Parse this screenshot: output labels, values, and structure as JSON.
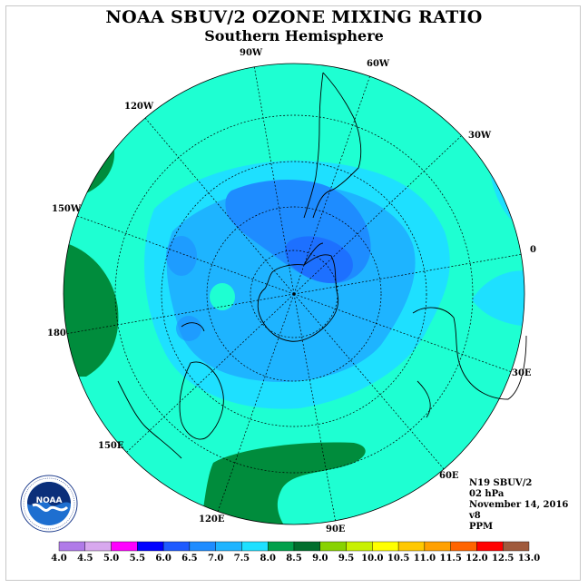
{
  "title": "NOAA SBUV/2 OZONE MIXING RATIO",
  "subtitle": "Southern Hemisphere",
  "info": {
    "satellite": "N19 SBUV/2",
    "level": "02 hPa",
    "date": "November 14, 2016",
    "version": "v8",
    "units": "PPM"
  },
  "logo": {
    "text": "NOAA",
    "ring_text": "NATIONAL OCEANIC AND ATMOSPHERIC ADMINISTRATION · U.S. DEPARTMENT OF COMMERCE"
  },
  "longitude_labels": [
    "90W",
    "60W",
    "30W",
    "0",
    "30E",
    "60E",
    "90E",
    "120E",
    "150E",
    "180",
    "150W",
    "120W"
  ],
  "colorbar": {
    "ticks": [
      "4.0",
      "4.5",
      "5.0",
      "5.5",
      "6.0",
      "6.5",
      "7.0",
      "7.5",
      "8.0",
      "8.5",
      "9.0",
      "9.5",
      "10.0",
      "10.5",
      "11.0",
      "11.5",
      "12.0",
      "12.5",
      "13.0"
    ],
    "colors": [
      "#b07ae8",
      "#d8a8ee",
      "#ff00ff",
      "#0000ff",
      "#1e5aff",
      "#1e8cff",
      "#1eb4ff",
      "#1ee0ff",
      "#00a04b",
      "#006e2d",
      "#88d200",
      "#c8f000",
      "#ffff00",
      "#ffc800",
      "#ffa000",
      "#ff6400",
      "#ff0000",
      "#a05a3c"
    ]
  },
  "field_colors": {
    "ppm_7_0_7_5": "#1ee0ff",
    "ppm_6_5_7_0": "#1eb4ff",
    "ppm_6_0_6_5": "#1e8cff",
    "ppm_8_0_8_5": "#1effd2",
    "ppm_8_5_9_0": "#008c3c"
  }
}
